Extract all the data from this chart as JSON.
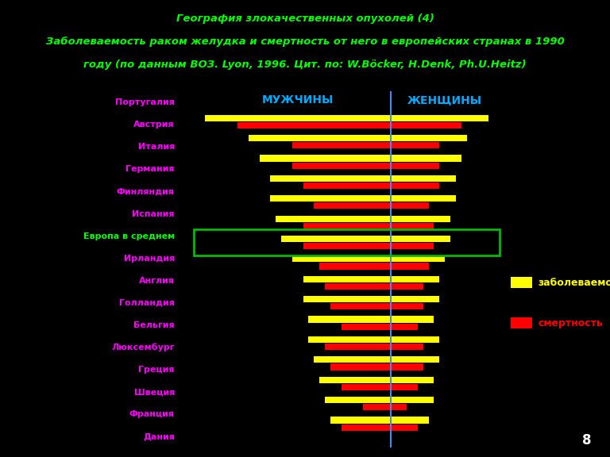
{
  "title_line1": "География злокачественных опухолей (4)",
  "title_line2": "Заболеваемость раком желудка и смертность от него в европейских странах в 1990",
  "title_line3": "году (по данным ВОЗ. Lyon, 1996. Цит. по: W.Böcker, H.Denk, Ph.U.Heitz)",
  "background_color": "#000000",
  "title_color": "#00ff00",
  "label_color": "#ff00ff",
  "europe_label_color": "#00ff00",
  "header_color": "#00aaff",
  "incidence_color": "#ffff00",
  "mortality_color": "#ff0000",
  "center_line_color": "#4488ff",
  "legend_incidence_text": "заболеваемость",
  "legend_mortality_text": "смертность",
  "legend_incidence_color": "#ffff00",
  "legend_mortality_color": "#ff0000",
  "countries": [
    "Португалия",
    "Австрия",
    "Италия",
    "Германия",
    "Финляндия",
    "Испания",
    "Европа в среднем",
    "Ирландия",
    "Англия",
    "Голландия",
    "Бельгия",
    "Люксембург",
    "Греция",
    "Швеция",
    "Франция",
    "Дания"
  ],
  "europe_avg_index": 6,
  "men_incidence": [
    34,
    26,
    24,
    22,
    22,
    21,
    20,
    18,
    16,
    16,
    15,
    15,
    14,
    13,
    12,
    11
  ],
  "men_mortality": [
    28,
    18,
    18,
    16,
    14,
    16,
    16,
    13,
    12,
    11,
    9,
    12,
    11,
    9,
    5,
    9
  ],
  "women_incidence": [
    18,
    14,
    13,
    12,
    12,
    11,
    11,
    10,
    9,
    9,
    8,
    9,
    9,
    8,
    8,
    7
  ],
  "women_mortality": [
    13,
    9,
    9,
    9,
    7,
    8,
    8,
    7,
    6,
    6,
    5,
    6,
    6,
    5,
    3,
    5
  ],
  "men_header": "МУЖЧИНЫ",
  "women_header": "ЖЕНЩИНЫ",
  "page_number": "8"
}
